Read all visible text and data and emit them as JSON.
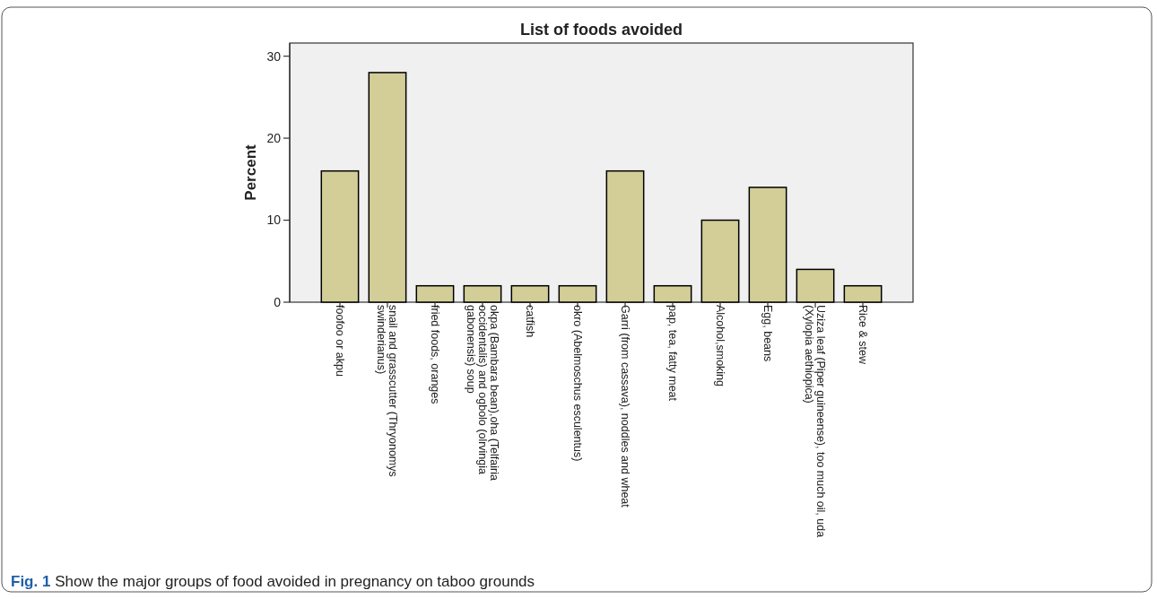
{
  "chart_data": {
    "type": "bar",
    "title": "List of foods avoided",
    "ylabel": "Percent",
    "categories": [
      "foofoo or akpu",
      "snail and grasscutter (Thryonomys\nswinderianus)",
      "fried foods, oranges",
      "okpa (Bambara bean),oha (Telfairia\noccidentalis) and ogbolo (olrvingia\ngabonensis) soup",
      "catfish",
      "okro (Abelmoschus esculentus)",
      "Garri (from cassava), noddles and wheat",
      "pap, tea, fatty meat",
      "Alcohol,smoking",
      "Egg, beans",
      "Uziza leaf (Piper guineense), too much oil, uda\n(Xylopia aethiopica)",
      "Rice & stew"
    ],
    "values": [
      16,
      28,
      2,
      2,
      2,
      2,
      16,
      2,
      10,
      14,
      4,
      2
    ],
    "color": "#d3ce98",
    "ylim": [
      0,
      31.6
    ],
    "yticks": [
      0,
      10,
      20,
      30
    ],
    "grid": false,
    "annotations": [
      "Fig. 1 Show the major groups of food avoided in pregnancy on taboo grounds"
    ]
  }
}
